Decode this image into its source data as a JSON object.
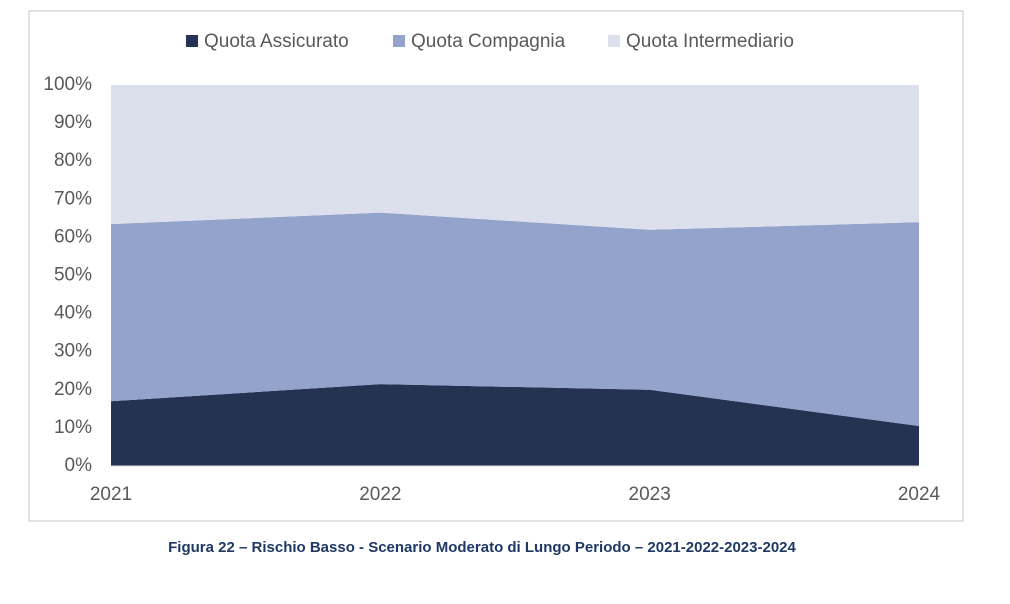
{
  "chart_data": {
    "type": "stacked_area",
    "categories": [
      "2021",
      "2022",
      "2023",
      "2024"
    ],
    "series": [
      {
        "name": "Quota Assicurato",
        "color": "#263252",
        "values": [
          17,
          21.5,
          20,
          10.5
        ]
      },
      {
        "name": "Quota Compagnia",
        "color": "#93a3cc",
        "values": [
          46.5,
          45,
          42,
          53.5
        ]
      },
      {
        "name": "Quota Intermediario",
        "color": "#dbe0ec",
        "values": [
          36.5,
          33.5,
          38,
          36
        ]
      }
    ],
    "ylim": [
      0,
      100
    ],
    "yticks": [
      {
        "value": 0,
        "label": "0%"
      },
      {
        "value": 10,
        "label": "10%"
      },
      {
        "value": 20,
        "label": "20%"
      },
      {
        "value": 30,
        "label": "30%"
      },
      {
        "value": 40,
        "label": "40%"
      },
      {
        "value": 50,
        "label": "50%"
      },
      {
        "value": 60,
        "label": "60%"
      },
      {
        "value": 70,
        "label": "70%"
      },
      {
        "value": 80,
        "label": "80%"
      },
      {
        "value": 90,
        "label": "90%"
      },
      {
        "value": 100,
        "label": "100%"
      }
    ],
    "grid": false,
    "legend": "top",
    "caption": "Figura 22 – Rischio Basso - Scenario Moderato di Lungo Periodo – 2021-2022-2023-2024"
  }
}
